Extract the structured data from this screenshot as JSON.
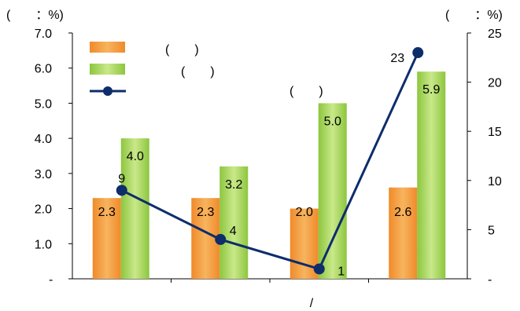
{
  "chart_data": {
    "type": "bar",
    "categories": [
      "",
      "",
      "",
      ""
    ],
    "series": [
      {
        "kind": "bar",
        "axis": "left",
        "color": "#f29a3a",
        "values": [
          2.3,
          2.3,
          2.0,
          2.6
        ],
        "legend_label": "(　　)"
      },
      {
        "kind": "bar",
        "axis": "left",
        "color": "#9fd045",
        "values": [
          4.0,
          3.2,
          5.0,
          5.9
        ],
        "legend_label": "(　　)"
      },
      {
        "kind": "line",
        "axis": "right",
        "color": "#0d2d6b",
        "values": [
          9,
          4,
          1,
          23
        ],
        "legend_label": "(　　)"
      }
    ],
    "left_axis": {
      "unit_label": "(　　：%)",
      "ylim": [
        0,
        7
      ],
      "ticks": [
        "-",
        "1.0",
        "2.0",
        "3.0",
        "4.0",
        "5.0",
        "6.0",
        "7.0"
      ]
    },
    "right_axis": {
      "unit_label": "(　　：%)",
      "ylim": [
        0,
        25
      ],
      "ticks": [
        "-",
        "5",
        "10",
        "15",
        "20",
        "25"
      ]
    },
    "xlabel": "/",
    "bar_labels": [
      [
        "2.3",
        "2.3",
        "2.0",
        "2.6"
      ],
      [
        "4.0",
        "3.2",
        "5.0",
        "5.9"
      ]
    ],
    "line_labels": [
      "9",
      "4",
      "1",
      "23"
    ],
    "grid": false,
    "legend_position": "top-left"
  }
}
